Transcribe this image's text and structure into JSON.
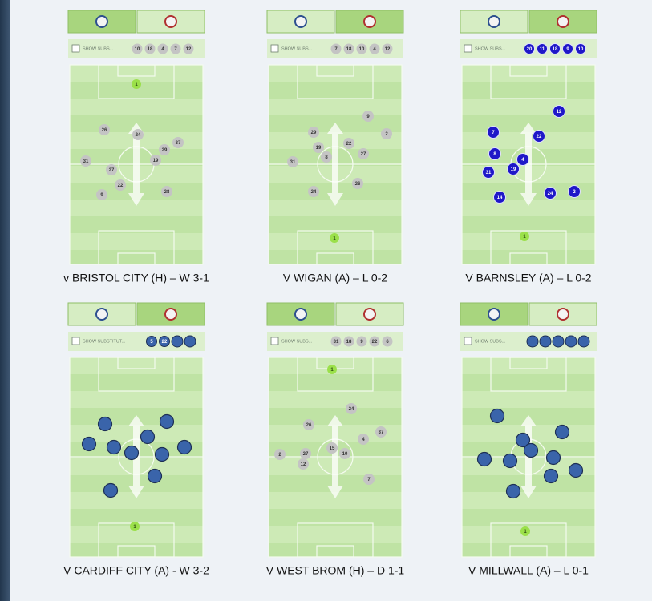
{
  "panels": [
    {
      "caption": "v BRISTOL CITY (H) – W 3-1",
      "subs_label": "SHOW SUBS...",
      "subs": [
        "10",
        "18",
        "4",
        "7",
        "12"
      ],
      "players": [
        "1",
        "26",
        "24",
        "37",
        "29",
        "31",
        "19",
        "27",
        "22",
        "9",
        "28"
      ]
    },
    {
      "caption": "V WIGAN (A) – L 0-2",
      "subs_label": "SHOW SUBS...",
      "subs": [
        "7",
        "18",
        "10",
        "4",
        "12"
      ],
      "players": [
        "1",
        "9",
        "2",
        "29",
        "22",
        "19",
        "27",
        "8",
        "31",
        "26",
        "24"
      ]
    },
    {
      "caption": "V BARNSLEY (A) – L 0-2",
      "subs_label": "SHOW SUBS...",
      "subs": [
        "20",
        "11",
        "18",
        "9",
        "10"
      ],
      "players": [
        "1",
        "12",
        "7",
        "22",
        "8",
        "4",
        "19",
        "31",
        "24",
        "2",
        "14"
      ]
    },
    {
      "caption": "V CARDIFF CITY (A) - W 3-2",
      "subs_label": "SHOW SUBSTITUT...",
      "subs": [
        "5",
        "22"
      ],
      "players": [
        "1"
      ]
    },
    {
      "caption": "V WEST BROM (H) – D 1-1",
      "subs_label": "SHOW SUBS...",
      "subs": [
        "31",
        "18",
        "9",
        "22",
        "6"
      ],
      "players": [
        "1",
        "24",
        "26",
        "37",
        "4",
        "15",
        "10",
        "2",
        "27",
        "12",
        "7"
      ]
    },
    {
      "caption": "V MILLWALL (A) – L 0-1",
      "subs_label": "SHOW SUBS...",
      "players": [
        "1"
      ]
    }
  ]
}
